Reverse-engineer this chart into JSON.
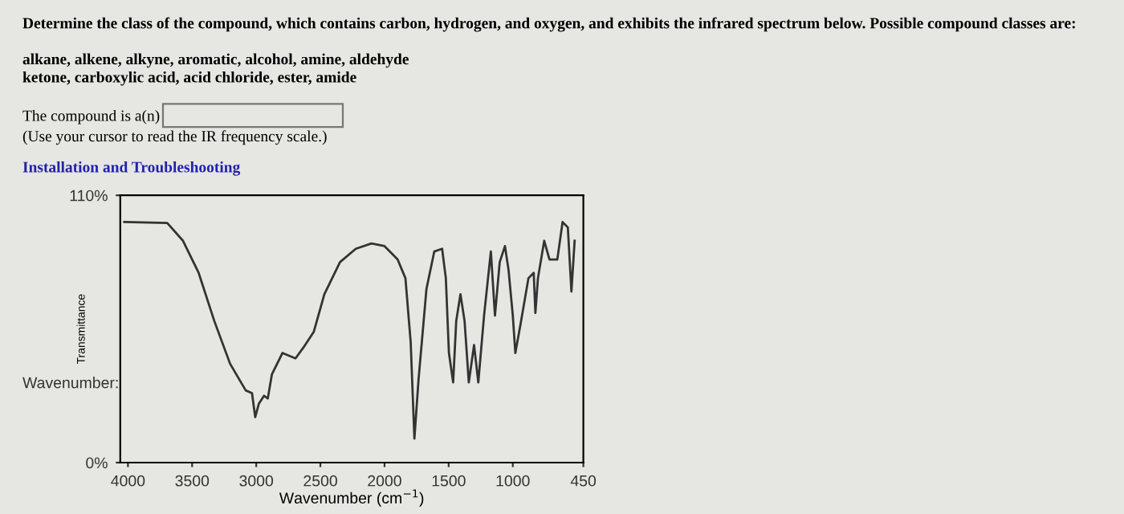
{
  "chart_data": {
    "type": "line",
    "xlabel": "Wavenumber (cm$^{−1}$)",
    "ylabel": "Transmittance",
    "annotations": [
      "Determine the class of the compound, which contains carbon, hydrogen, and oxygen, and exhibits the infrared spectrum below. Possible compound classes are:",
      "alkane, alkene, alkyne, aromatic, alcohol, amine, aldehyde",
      "ketone, carboxylic acid, acid chloride, ester, amide",
      "The compound is a(n)",
      "(Use your cursor to read the IR frequency scale.)",
      "Installation and Troubleshooting",
      "Wavenumber:"
    ],
    "x": [
      4029,
      3694,
      3571,
      3449,
      3327,
      3204,
      3082,
      3033,
      3008,
      2980,
      2939,
      2910,
      2878,
      2796,
      2694,
      2633,
      2551,
      2469,
      2347,
      2224,
      2102,
      2000,
      1898,
      1837,
      1796,
      1767,
      1735,
      1673,
      1612,
      1551,
      1522,
      1498,
      1465,
      1441,
      1408,
      1376,
      1343,
      1302,
      1269,
      1224,
      1171,
      1139,
      1102,
      1061,
      1033,
      1000,
      980,
      939,
      878,
      837,
      824,
      804,
      755,
      714,
      653,
      612,
      571,
      543,
      518
    ],
    "series": [
      {
        "color": "#333333",
        "values": [
          99,
          98.6,
          91.3,
          78.1,
          58.3,
          40.7,
          29.7,
          28.6,
          18.7,
          24.2,
          27.5,
          26.4,
          36.3,
          45.1,
          42.9,
          47.3,
          53.9,
          69.3,
          82.5,
          88,
          90.2,
          89.1,
          83.6,
          75.9,
          49.5,
          9.9,
          34.1,
          71.5,
          86.9,
          88,
          75.9,
          45.1,
          33,
          58.3,
          69.3,
          58.3,
          33,
          48.4,
          33,
          60.5,
          86.9,
          60.5,
          82.5,
          89.1,
          79.2,
          60.5,
          45.1,
          57.2,
          75.9,
          78.1,
          61.6,
          75.9,
          91.3,
          83.6,
          83.6,
          99,
          96.8,
          70.4,
          91.3
        ]
      }
    ],
    "xlim": [
      4060,
      450
    ],
    "ylim": [
      0,
      110
    ],
    "xticks": [
      4000,
      3500,
      3000,
      2500,
      2000,
      1500,
      1000,
      450
    ],
    "yticks": [
      {
        "value": 0,
        "label": "0%"
      },
      {
        "value": 110,
        "label": "110%"
      }
    ],
    "grid": false,
    "legend": false,
    "marker": "none",
    "line_style": "solid"
  }
}
